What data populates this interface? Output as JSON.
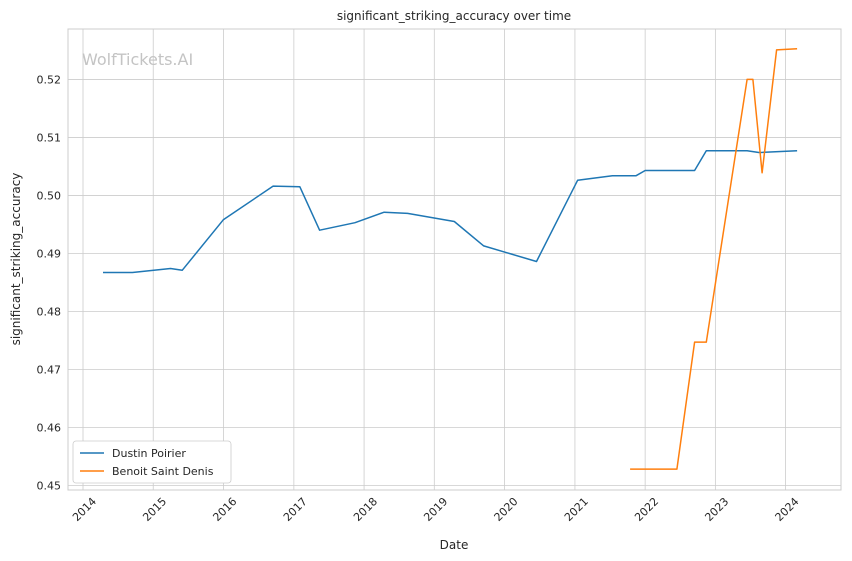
{
  "watermark": "WolfTickets.AI",
  "chart_data": {
    "type": "line",
    "title": "significant_striking_accuracy over time",
    "xlabel": "Date",
    "ylabel": "significant_striking_accuracy",
    "x_ticks": [
      "2014",
      "2015",
      "2016",
      "2017",
      "2018",
      "2019",
      "2020",
      "2021",
      "2022",
      "2023",
      "2024"
    ],
    "y_ticks": [
      "0.45",
      "0.46",
      "0.47",
      "0.48",
      "0.49",
      "0.50",
      "0.51",
      "0.52"
    ],
    "xlim": [
      "2013-10-15",
      "2024-10-15"
    ],
    "ylim": [
      0.4492,
      0.5287
    ],
    "grid": true,
    "legend_position": "lower-left",
    "series": [
      {
        "name": "Dustin Poirier",
        "color": "#1f77b4",
        "points": [
          [
            "2014-04-15",
            0.4867
          ],
          [
            "2014-09-15",
            0.4867
          ],
          [
            "2015-04-01",
            0.4874
          ],
          [
            "2015-06-01",
            0.4871
          ],
          [
            "2015-12-31",
            0.4958
          ],
          [
            "2016-09-15",
            0.5016
          ],
          [
            "2017-02-01",
            0.5015
          ],
          [
            "2017-05-15",
            0.494
          ],
          [
            "2017-11-15",
            0.4953
          ],
          [
            "2018-04-15",
            0.4971
          ],
          [
            "2018-08-15",
            0.4969
          ],
          [
            "2019-04-15",
            0.4955
          ],
          [
            "2019-09-15",
            0.4913
          ],
          [
            "2020-06-15",
            0.4886
          ],
          [
            "2021-01-15",
            0.5026
          ],
          [
            "2021-07-15",
            0.5034
          ],
          [
            "2021-11-15",
            0.5034
          ],
          [
            "2022-01-01",
            0.5043
          ],
          [
            "2022-09-15",
            0.5043
          ],
          [
            "2022-11-15",
            0.5077
          ],
          [
            "2023-06-15",
            0.5077
          ],
          [
            "2023-08-15",
            0.5074
          ],
          [
            "2024-03-01",
            0.5077
          ]
        ]
      },
      {
        "name": "Benoit Saint Denis",
        "color": "#ff7f0e",
        "points": [
          [
            "2021-10-15",
            0.4528
          ],
          [
            "2022-06-15",
            0.4528
          ],
          [
            "2022-09-15",
            0.4747
          ],
          [
            "2022-11-15",
            0.4747
          ],
          [
            "2023-06-15",
            0.52
          ],
          [
            "2023-07-15",
            0.52
          ],
          [
            "2023-09-01",
            0.5039
          ],
          [
            "2023-11-15",
            0.5251
          ],
          [
            "2024-03-01",
            0.5253
          ]
        ]
      }
    ]
  }
}
